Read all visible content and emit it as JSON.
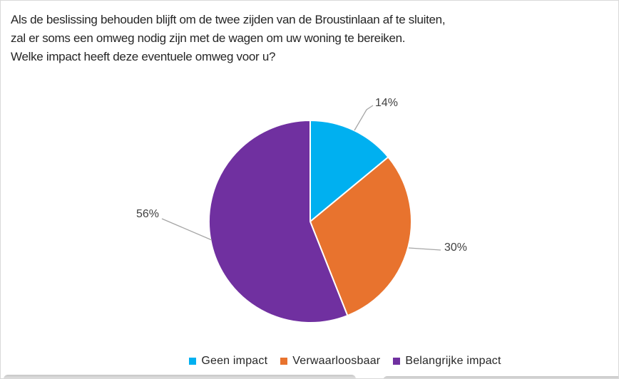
{
  "page": {
    "background": "#FFFFFF",
    "border_color": "#D9D9D9"
  },
  "title": {
    "line1": "Als de beslissing behouden blijft om de twee zijden van de Broustinlaan af te sluiten,",
    "line2": "zal er soms een omweg nodig zijn met de wagen om uw woning te bereiken.",
    "line3": "Welke impact heeft deze eventuele omweg voor u?"
  },
  "chart_data": {
    "type": "pie",
    "title": "Als de beslissing behouden blijft om de twee zijden van de Broustinlaan af te sluiten, zal er soms een omweg nodig zijn met de wagen om uw woning te bereiken. Welke impact heeft deze eventuele omweg voor u?",
    "categories": [
      "Geen impact",
      "Verwaarloosbaar",
      "Belangrijke impact"
    ],
    "values": [
      14,
      30,
      56
    ],
    "data_labels": [
      "14%",
      "30%",
      "56%"
    ],
    "colors": [
      "#00B0F0",
      "#E8732E",
      "#7030A0"
    ],
    "unit": "%",
    "start_angle_deg": 0,
    "direction": "clockwise",
    "legend_position": "bottom",
    "slice_border_color": "#FFFFFF",
    "label_color": "#404040",
    "leader_line_color": "#A6A6A6"
  },
  "legend": {
    "items": [
      {
        "label": "Geen impact",
        "color": "#00B0F0"
      },
      {
        "label": "Verwaarloosbaar",
        "color": "#E8732E"
      },
      {
        "label": "Belangrijke impact",
        "color": "#7030A0"
      }
    ]
  }
}
